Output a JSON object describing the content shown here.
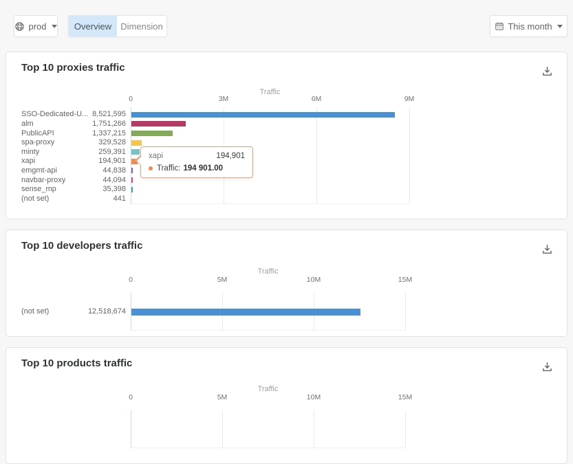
{
  "topbar": {
    "environment": {
      "label": "prod",
      "icon": "globe-icon"
    },
    "tabs": [
      {
        "label": "Overview",
        "active": true
      },
      {
        "label": "Dimension",
        "active": false
      }
    ],
    "date_range": {
      "label": "This month",
      "icon": "calendar-icon"
    }
  },
  "cards": [
    {
      "title": "Top 10 proxies traffic",
      "action_icon": "download-icon"
    },
    {
      "title": "Top 10 developers traffic",
      "action_icon": "download-icon"
    },
    {
      "title": "Top 10 products traffic",
      "action_icon": "download-icon"
    }
  ],
  "tooltip": {
    "name": "xapi",
    "value": "194,901",
    "metric_label": "Traffic:",
    "metric_value": "194 901.00",
    "accent_color": "#f08b4b"
  },
  "chart_data": [
    {
      "type": "bar",
      "orientation": "horizontal",
      "title": "Top 10 proxies traffic",
      "xlabel": "Traffic",
      "xlim": [
        0,
        9000000
      ],
      "xticks": [
        "0",
        "3M",
        "6M",
        "9M"
      ],
      "grid": true,
      "legend": "none",
      "categories": [
        "SSO-Dedicated-U...",
        "alm",
        "PublicAPI",
        "spa-proxy",
        "minty",
        "xapi",
        "emgmt-api",
        "navbar-proxy",
        "sense_mp",
        "(not set)"
      ],
      "values": [
        8521595,
        1751266,
        1337215,
        329528,
        259391,
        194901,
        44838,
        44094,
        35398,
        441
      ],
      "value_labels": [
        "8,521,595",
        "1,751,266",
        "1,337,215",
        "329,528",
        "259,391",
        "194,901",
        "44,838",
        "44,094",
        "35,398",
        "441"
      ],
      "colors": [
        "#4a90d5",
        "#b43a64",
        "#82aa58",
        "#f6c44e",
        "#74c5c9",
        "#f08b4b",
        "#9257b5",
        "#e8486e",
        "#45a89e",
        "#4a90d5"
      ]
    },
    {
      "type": "bar",
      "orientation": "horizontal",
      "title": "Top 10 developers traffic",
      "xlabel": "Traffic",
      "xlim": [
        0,
        15000000
      ],
      "xticks": [
        "0",
        "5M",
        "10M",
        "15M"
      ],
      "grid": true,
      "legend": "none",
      "categories": [
        "(not set)"
      ],
      "values": [
        12518674
      ],
      "value_labels": [
        "12,518,674"
      ],
      "colors": [
        "#4a90d5"
      ]
    },
    {
      "type": "bar",
      "orientation": "horizontal",
      "title": "Top 10 products traffic",
      "xlabel": "Traffic",
      "xlim": [
        0,
        15000000
      ],
      "xticks": [
        "0",
        "5M",
        "10M",
        "15M"
      ],
      "grid": true,
      "legend": "none",
      "categories": [],
      "values": [],
      "value_labels": [],
      "colors": []
    }
  ]
}
